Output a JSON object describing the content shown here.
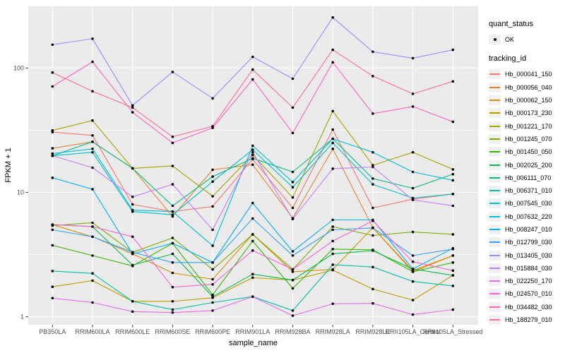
{
  "figure": {
    "background": "#FFFFFF",
    "panel_background": "#EBEBEB",
    "gridline_color": "#FFFFFF",
    "tick_color": "#333333",
    "tick_label_color": "#4D4D4D",
    "axis_title_color": "#000000",
    "point_color": "#000000"
  },
  "legend": {
    "quant_status_title": "quant_status",
    "quant_status_items": [
      {
        "label": "OK",
        "shape": "point"
      }
    ],
    "tracking_id_title": "tracking_id"
  },
  "chart_data": {
    "type": "line",
    "title": "",
    "xlabel": "sample_name",
    "ylabel": "FPKM + 1",
    "y_scale": "log10",
    "y_ticks": [
      1,
      10,
      100
    ],
    "y_minor_gridlines": [
      3.162,
      31.62,
      316.2
    ],
    "ylim": [
      0.87,
      330
    ],
    "grid": true,
    "legend_position": "right",
    "categories": [
      "PB350LA",
      "RRIM600LA",
      "RRIM600LE",
      "RRIM600SE",
      "RRIM600PE",
      "RRIM901LA",
      "RRIM928BA",
      "RRIM928LA",
      "RRIM928LE",
      "RRII105LA_Control",
      "RRII105LA_Stressed"
    ],
    "series": [
      {
        "name": "Hb_000041_150",
        "color": "#F8766D",
        "values": [
          30.5,
          28.7,
          8.0,
          7.0,
          7.7,
          18.5,
          7.5,
          32,
          7.5,
          8.8,
          9.7
        ]
      },
      {
        "name": "Hb_000056_040",
        "color": "#EA8331",
        "values": [
          22.6,
          25.5,
          15.6,
          6.4,
          15.2,
          16.7,
          6.2,
          22.4,
          5.2,
          2.3,
          3.1
        ]
      },
      {
        "name": "Hb_000062_150",
        "color": "#D89000",
        "values": [
          5.5,
          4.4,
          3.2,
          2.25,
          2.0,
          4.6,
          2.3,
          2.4,
          5.2,
          2.35,
          3.1
        ]
      },
      {
        "name": "Hb_000173_230",
        "color": "#C09B00",
        "values": [
          1.74,
          1.95,
          1.33,
          1.33,
          1.42,
          2.06,
          1.97,
          2.37,
          1.67,
          1.36,
          2.15
        ]
      },
      {
        "name": "Hb_001221_170",
        "color": "#A3A500",
        "values": [
          31.5,
          37.8,
          15.6,
          16.3,
          9.3,
          20,
          9.1,
          45,
          16.5,
          21,
          15.3
        ]
      },
      {
        "name": "Hb_001245_070",
        "color": "#7CAE00",
        "values": [
          5.4,
          5.7,
          3.3,
          4.3,
          2.4,
          4.6,
          2.4,
          5.3,
          4.5,
          4.8,
          4.6
        ]
      },
      {
        "name": "Hb_001450_050",
        "color": "#39B600",
        "values": [
          3.75,
          3.1,
          2.56,
          3.9,
          1.5,
          4.06,
          1.69,
          3.5,
          3.45,
          2.3,
          2.73
        ]
      },
      {
        "name": "Hb_002025_200",
        "color": "#00BB4E",
        "values": [
          5.5,
          5.3,
          2.6,
          3.2,
          1.45,
          2.2,
          1.97,
          3.2,
          3.4,
          2.42,
          2.15
        ]
      },
      {
        "name": "Hb_006111_070",
        "color": "#00BF7D",
        "values": [
          19.7,
          25.5,
          15.6,
          7.8,
          13.4,
          18.8,
          14.6,
          27,
          12.9,
          10.8,
          14.0
        ]
      },
      {
        "name": "Hb_006371_010",
        "color": "#00C1A3",
        "values": [
          2.33,
          2.23,
          1.33,
          1.14,
          1.3,
          1.45,
          1.12,
          2.62,
          2.51,
          1.92,
          1.77
        ]
      },
      {
        "name": "Hb_007545_030",
        "color": "#00BFC4",
        "values": [
          19.7,
          21,
          7.0,
          6.6,
          12.2,
          22,
          11,
          25,
          11.6,
          9.0,
          9.7
        ]
      },
      {
        "name": "Hb_007632_220",
        "color": "#00BAE0",
        "values": [
          20.5,
          22.4,
          7.2,
          7.0,
          3.72,
          23.7,
          12.1,
          27,
          21,
          14.6,
          12.5
        ]
      },
      {
        "name": "Hb_008247_010",
        "color": "#00B0F6",
        "values": [
          13.1,
          10.6,
          3.2,
          3.9,
          2.73,
          8.2,
          3.35,
          6.0,
          6.0,
          2.42,
          3.55
        ]
      },
      {
        "name": "Hb_012799_030",
        "color": "#35A2FF",
        "values": [
          5.0,
          4.4,
          3.3,
          2.73,
          2.73,
          6.16,
          3.1,
          5.0,
          5.17,
          3.1,
          3.5
        ]
      },
      {
        "name": "Hb_013405_030",
        "color": "#9590FF",
        "values": [
          154,
          172,
          50,
          93,
          57,
          123,
          82,
          255,
          135,
          120,
          140
        ]
      },
      {
        "name": "Hb_015884_030",
        "color": "#C77CFF",
        "values": [
          19.7,
          15.8,
          9.2,
          11.6,
          5.0,
          21,
          6.1,
          15.5,
          16,
          8.7,
          7.8
        ]
      },
      {
        "name": "Hb_022250_170",
        "color": "#E76BF3",
        "values": [
          1.41,
          1.3,
          1.1,
          1.08,
          1.12,
          1.45,
          1.02,
          1.27,
          1.28,
          1.04,
          1.14
        ]
      },
      {
        "name": "Hb_024570_010",
        "color": "#FA62DB",
        "values": [
          5.5,
          5.3,
          4.4,
          1.73,
          1.82,
          3.41,
          2.4,
          4.06,
          5.9,
          2.77,
          2.35
        ]
      },
      {
        "name": "Hb_034482_030",
        "color": "#FF62BC",
        "values": [
          71,
          112,
          44,
          25,
          33,
          81,
          30,
          111,
          43,
          49,
          37
        ]
      },
      {
        "name": "Hb_188279_010",
        "color": "#FF6A98",
        "values": [
          92,
          65,
          48,
          28,
          34,
          97,
          48,
          140,
          86,
          62,
          78
        ]
      }
    ]
  }
}
